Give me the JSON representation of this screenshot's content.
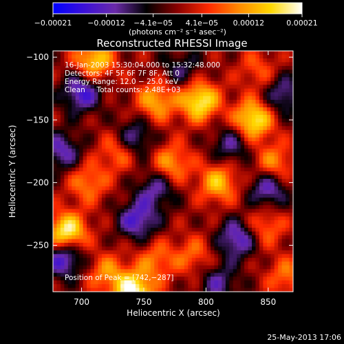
{
  "chart_data": {
    "type": "heatmap",
    "title": "Reconstructed RHESSI Image",
    "xlabel": "Heliocentric X (arcsec)",
    "ylabel": "Heliocentric Y (arcsec)",
    "xlim": [
      677,
      870
    ],
    "ylim": [
      -287,
      -95
    ],
    "x_ticks": [
      700,
      750,
      800,
      850
    ],
    "x_tick_labels": [
      "700",
      "750",
      "800",
      "850"
    ],
    "y_ticks": [
      -100,
      -150,
      -200,
      -250
    ],
    "y_tick_labels": [
      "−100",
      "−150",
      "−200",
      "−250"
    ],
    "colorbar": {
      "min": -0.00021,
      "max": 0.00021,
      "ticks": [
        -0.00021,
        -0.00012,
        -4.1e-05,
        4.1e-05,
        0.00012,
        0.00021
      ],
      "tick_labels": [
        "−0.00021",
        "−0.00012",
        "−4.1e−05",
        "4.1e−05",
        "0.00012",
        "0.00021"
      ],
      "unit_label": "(photons cm⁻² s⁻¹ asec⁻²)",
      "colors": [
        "#0000ff",
        "#3b10d8",
        "#6a2aa8",
        "#000000",
        "#8a0000",
        "#ff2a00",
        "#ff8c00",
        "#ffd800",
        "#ffffff"
      ]
    },
    "annotations": [
      "16-Jan-2003 15:30:04.000 to 15:32:48.000",
      "Detectors: 4F 5F 6F 7F 8F, Att 0",
      "Energy Range: 12.0 − 25.0 keV",
      "Clean     Total counts: 2.48E+03"
    ],
    "peak_label": "Position of Peak = [742,−287]",
    "peaks": [
      {
        "x": 688,
        "y": -240,
        "value": 0.00021
      },
      {
        "x": 742,
        "y": -287,
        "value": 0.00021
      },
      {
        "x": 795,
        "y": -135,
        "value": 0.00019
      },
      {
        "x": 838,
        "y": -150,
        "value": 0.00019
      },
      {
        "x": 710,
        "y": -103,
        "value": 0.00016
      },
      {
        "x": 760,
        "y": -135,
        "value": 0.00013
      },
      {
        "x": 810,
        "y": -200,
        "value": 0.00014
      },
      {
        "x": 772,
        "y": -185,
        "value": 0.00012
      },
      {
        "x": 730,
        "y": -175,
        "value": 0.0001
      },
      {
        "x": 705,
        "y": -200,
        "value": 0.0001
      },
      {
        "x": 848,
        "y": -235,
        "value": 9e-05
      },
      {
        "x": 790,
        "y": -258,
        "value": 8e-05
      },
      {
        "x": 720,
        "y": -272,
        "value": 0.0001
      },
      {
        "x": 760,
        "y": -262,
        "value": 9e-05
      },
      {
        "x": 855,
        "y": -185,
        "value": 0.00011
      },
      {
        "x": 842,
        "y": -110,
        "value": 7e-05
      },
      {
        "x": 865,
        "y": -275,
        "value": 9e-05
      },
      {
        "x": 700,
        "y": -128,
        "value": -0.00015
      },
      {
        "x": 686,
        "y": -260,
        "value": -0.00016
      },
      {
        "x": 745,
        "y": -230,
        "value": -0.00014
      },
      {
        "x": 825,
        "y": -245,
        "value": -0.00014
      },
      {
        "x": 850,
        "y": -205,
        "value": -0.00013
      },
      {
        "x": 742,
        "y": -165,
        "value": -0.00012
      },
      {
        "x": 760,
        "y": -205,
        "value": -0.00011
      },
      {
        "x": 820,
        "y": -170,
        "value": -0.0001
      },
      {
        "x": 684,
        "y": -175,
        "value": -0.00012
      },
      {
        "x": 810,
        "y": -280,
        "value": -0.0001
      },
      {
        "x": 780,
        "y": -110,
        "value": -8e-05
      },
      {
        "x": 862,
        "y": -130,
        "value": -0.00011
      }
    ]
  },
  "footer": {
    "timestamp": "25-May-2013 17:06"
  }
}
